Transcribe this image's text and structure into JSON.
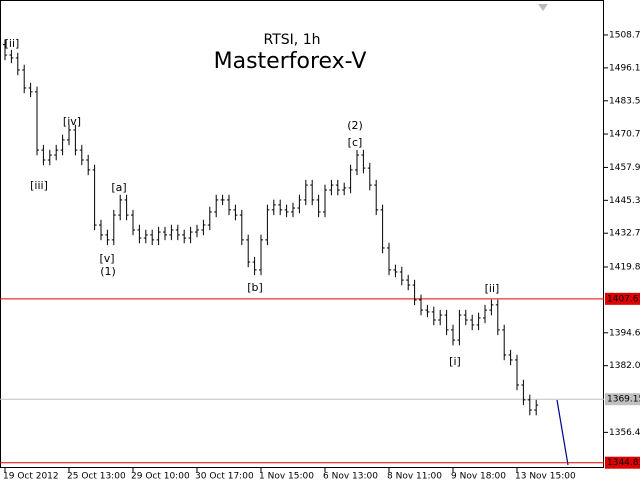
{
  "chart_data": {
    "type": "ohlc",
    "title": "RTSI, 1h",
    "subtitle": "Masterforex-V",
    "categories": [
      "19 Oct 2012",
      null,
      null,
      null,
      null,
      null,
      null,
      null,
      null,
      null,
      "25 Oct 13:00",
      null,
      null,
      null,
      null,
      null,
      null,
      null,
      null,
      null,
      "29 Oct 10:00",
      null,
      null,
      null,
      null,
      null,
      null,
      null,
      null,
      null,
      "30 Oct 17:00",
      null,
      null,
      null,
      null,
      null,
      null,
      null,
      null,
      null,
      "1 Nov 15:00",
      null,
      null,
      null,
      null,
      null,
      null,
      null,
      null,
      null,
      "6 Nov 13:00",
      null,
      null,
      null,
      null,
      null,
      null,
      null,
      null,
      null,
      "8 Nov 11:00",
      null,
      null,
      null,
      null,
      null,
      null,
      null,
      null,
      null,
      "9 Nov 18:00",
      null,
      null,
      null,
      null,
      null,
      null,
      null,
      null,
      null,
      "13 Nov 15:00",
      null,
      null,
      null
    ],
    "open": [
      1505.0,
      1501.0,
      1499.9,
      1495.3,
      1488.4,
      1486.9,
      1464.6,
      1460.8,
      1462.7,
      1464.6,
      1468.5,
      1472.3,
      1464.6,
      1460.8,
      1457.0,
      1435.9,
      1432.1,
      1430.2,
      1439.7,
      1445.5,
      1439.7,
      1434.0,
      1430.9,
      1432.1,
      1430.2,
      1433.2,
      1432.1,
      1434.0,
      1432.1,
      1430.9,
      1433.2,
      1434.0,
      1435.9,
      1440.9,
      1445.5,
      1445.5,
      1441.7,
      1439.7,
      1430.2,
      1421.7,
      1418.7,
      1430.2,
      1441.7,
      1443.6,
      1441.7,
      1440.9,
      1442.4,
      1445.5,
      1451.2,
      1445.5,
      1440.9,
      1449.3,
      1451.2,
      1449.3,
      1450.1,
      1457.0,
      1462.7,
      1457.7,
      1451.2,
      1441.7,
      1427.1,
      1418.7,
      1417.9,
      1414.8,
      1412.9,
      1407.2,
      1403.3,
      1402.6,
      1399.5,
      1401.4,
      1395.7,
      1391.8,
      1401.4,
      1399.5,
      1397.6,
      1400.3,
      1403.3,
      1405.3,
      1395.7,
      1386.1,
      1384.2,
      1374.6,
      1368.9,
      1365.0
    ],
    "high": [
      1507.0,
      1503.0,
      1501.9,
      1497.3,
      1490.4,
      1488.9,
      1466.6,
      1464.7,
      1466.6,
      1470.5,
      1474.3,
      1474.3,
      1466.6,
      1462.8,
      1459.0,
      1437.9,
      1434.1,
      1441.7,
      1447.5,
      1447.5,
      1441.7,
      1436.0,
      1434.1,
      1434.1,
      1435.2,
      1435.2,
      1436.0,
      1436.0,
      1434.1,
      1435.2,
      1436.0,
      1437.9,
      1442.9,
      1447.5,
      1447.5,
      1447.5,
      1443.7,
      1441.7,
      1432.2,
      1423.7,
      1432.2,
      1443.7,
      1445.6,
      1445.6,
      1443.7,
      1444.4,
      1447.5,
      1453.2,
      1453.2,
      1447.5,
      1451.3,
      1453.2,
      1453.2,
      1452.1,
      1459.0,
      1464.7,
      1464.7,
      1459.7,
      1453.2,
      1443.7,
      1429.1,
      1420.7,
      1419.9,
      1416.8,
      1414.9,
      1409.2,
      1405.3,
      1404.6,
      1403.4,
      1403.4,
      1397.7,
      1403.4,
      1403.4,
      1401.5,
      1402.3,
      1405.3,
      1407.3,
      1407.3,
      1397.7,
      1388.1,
      1386.2,
      1376.6,
      1370.9,
      1368.9
    ],
    "low": [
      1499.0,
      1497.9,
      1493.3,
      1486.4,
      1484.9,
      1462.6,
      1458.8,
      1458.8,
      1460.7,
      1462.6,
      1466.5,
      1462.6,
      1458.8,
      1455.0,
      1433.9,
      1430.1,
      1428.2,
      1428.2,
      1437.7,
      1437.7,
      1432.0,
      1428.9,
      1428.9,
      1428.2,
      1428.2,
      1430.1,
      1430.1,
      1430.1,
      1428.9,
      1428.9,
      1431.2,
      1432.0,
      1433.9,
      1438.9,
      1443.5,
      1439.7,
      1437.7,
      1428.2,
      1419.7,
      1416.7,
      1416.7,
      1428.2,
      1439.7,
      1439.7,
      1438.9,
      1438.9,
      1440.4,
      1443.5,
      1443.5,
      1438.9,
      1438.9,
      1447.3,
      1447.3,
      1447.3,
      1448.1,
      1455.0,
      1455.7,
      1449.2,
      1439.7,
      1425.1,
      1416.7,
      1415.9,
      1412.8,
      1410.9,
      1405.2,
      1401.3,
      1400.6,
      1397.5,
      1397.5,
      1393.7,
      1389.8,
      1389.8,
      1397.5,
      1395.6,
      1395.6,
      1398.3,
      1401.3,
      1393.7,
      1384.1,
      1382.2,
      1372.6,
      1366.9,
      1363.0,
      1363.0
    ],
    "close": [
      1501.0,
      1499.9,
      1495.3,
      1488.4,
      1486.9,
      1464.6,
      1460.8,
      1462.7,
      1464.6,
      1468.5,
      1472.3,
      1464.6,
      1460.8,
      1457.0,
      1435.9,
      1432.1,
      1430.2,
      1439.7,
      1445.5,
      1439.7,
      1434.0,
      1430.9,
      1432.1,
      1430.2,
      1433.2,
      1432.1,
      1434.0,
      1432.1,
      1430.9,
      1433.2,
      1434.0,
      1435.9,
      1440.9,
      1445.5,
      1445.5,
      1441.7,
      1439.7,
      1430.2,
      1421.7,
      1418.7,
      1430.2,
      1441.7,
      1443.6,
      1441.7,
      1440.9,
      1442.4,
      1445.5,
      1451.2,
      1445.5,
      1440.9,
      1449.3,
      1451.2,
      1449.3,
      1450.1,
      1457.0,
      1462.7,
      1457.7,
      1451.2,
      1441.7,
      1427.1,
      1418.7,
      1417.9,
      1414.8,
      1412.9,
      1407.2,
      1403.3,
      1402.6,
      1399.5,
      1401.4,
      1395.7,
      1391.8,
      1401.4,
      1399.5,
      1397.6,
      1400.3,
      1403.3,
      1405.3,
      1395.7,
      1386.1,
      1384.2,
      1374.6,
      1368.9,
      1365.0,
      1366.9
    ],
    "color": "#000000",
    "ylim": [
      1342.8,
      1522.1
    ],
    "yticks": [
      {
        "value": 1508.7,
        "label": "1508.70"
      },
      {
        "value": 1496.1,
        "label": "1496.10"
      },
      {
        "value": 1483.5,
        "label": "1483.50"
      },
      1470.75,
      1457.95,
      1445.35,
      1432.75,
      {
        "value": 1419.8,
        "label": "1419.80"
      },
      {
        "value": 1394.6,
        "label": "1394.60"
      },
      {
        "value": 1382.0,
        "label": "1382.00"
      },
      1356.45
    ],
    "levels": [
      {
        "value": 1407.61,
        "label": "1407.61",
        "color": "#e00000"
      },
      {
        "value": 1369.15,
        "label": "1369.15",
        "color": "#c0c0c0"
      },
      {
        "value": 1344.83,
        "label": "1344.83",
        "color": "#e00000"
      }
    ],
    "annotations": [
      "[ii]",
      "[iii]",
      "[iv]",
      "[a]",
      "[v]",
      "(1)",
      "[b]",
      "(2)",
      "[c]",
      "[i]",
      "[ii]"
    ],
    "subtitle_color": "#e00000"
  }
}
